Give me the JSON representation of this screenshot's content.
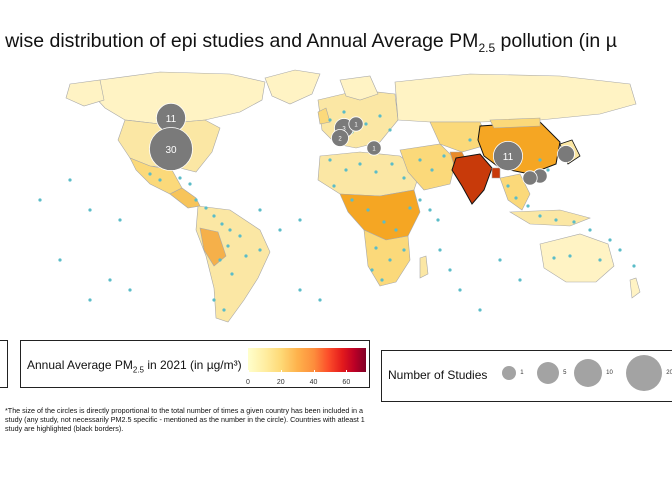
{
  "title": {
    "text_before": "try wise distribution of epi studies and Annual Average PM",
    "subscript": "2.5",
    "text_after": " pollution (in µ"
  },
  "colors": {
    "land_default": "#fbe7a4",
    "land_light": "#fff3c4",
    "orange": "#f5a623",
    "dark_orange": "#e07b1a",
    "india": "#c83a0a",
    "ocean": "#ffffff",
    "station_dot": "#5bbcc8",
    "study_circle": "#7a7a7a"
  },
  "pm_legend": {
    "label_before": "Annual Average PM",
    "label_sub": "2.5",
    "label_after": " in 2021 (in µg/m³)",
    "ticks": [
      "0",
      "20",
      "40",
      "60"
    ],
    "tick_values": [
      0,
      20,
      40,
      60
    ],
    "range": [
      0,
      72
    ]
  },
  "studies_legend": {
    "label": "Number of Studies",
    "sizes": [
      {
        "label": "1",
        "value": 1
      },
      {
        "label": "5",
        "value": 5
      },
      {
        "label": "10",
        "value": 10
      },
      {
        "label": "20",
        "value": 20
      }
    ]
  },
  "study_circles": [
    {
      "region": "Canada",
      "count": "11",
      "value": 11
    },
    {
      "region": "United States",
      "count": "30",
      "value": 30
    },
    {
      "region": "China",
      "count": "11",
      "value": 11
    },
    {
      "region": "Europe",
      "count": "3",
      "value": 3
    },
    {
      "region": "Europe",
      "count": "2",
      "value": 2
    },
    {
      "region": "Europe",
      "count": "1",
      "value": 1
    },
    {
      "region": "Europe",
      "count": "1",
      "value": 1
    },
    {
      "region": "South Korea",
      "count": "",
      "value": 2
    },
    {
      "region": "East Asia",
      "count": "",
      "value": 1
    },
    {
      "region": "Southeast Asia",
      "count": "",
      "value": 1
    }
  ],
  "footnote": "*The size of the circles is directly proportional to the total number of times a given country has been included in a study (any study, not necessarily PM2.5 specific - mentioned as the number in the circle). Countries with atleast 1 study are highlighted (black borders)."
}
